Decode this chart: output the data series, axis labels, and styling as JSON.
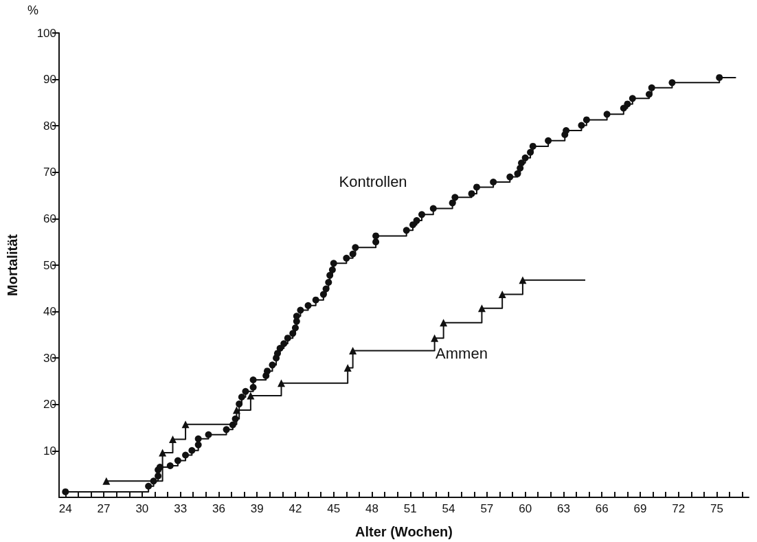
{
  "chart_data": {
    "type": "step",
    "xlabel": "Alter (Wochen)",
    "ylabel": "Mortalität",
    "annotations": [
      "%"
    ],
    "xlim": [
      23.5,
      77.5
    ],
    "ylim": [
      0,
      100
    ],
    "xticks": [
      24,
      {
        "value": 25,
        "label": null
      },
      {
        "value": 26,
        "label": null
      },
      27,
      {
        "value": 28,
        "label": null
      },
      {
        "value": 29,
        "label": null
      },
      30,
      {
        "value": 31,
        "label": null
      },
      {
        "value": 32,
        "label": null
      },
      33,
      {
        "value": 34,
        "label": null
      },
      {
        "value": 35,
        "label": null
      },
      36,
      {
        "value": 37,
        "label": null
      },
      {
        "value": 38,
        "label": null
      },
      39,
      {
        "value": 40,
        "label": null
      },
      {
        "value": 41,
        "label": null
      },
      42,
      {
        "value": 43,
        "label": null
      },
      {
        "value": 44,
        "label": null
      },
      45,
      {
        "value": 46,
        "label": null
      },
      {
        "value": 47,
        "label": null
      },
      48,
      {
        "value": 49,
        "label": null
      },
      {
        "value": 50,
        "label": null
      },
      51,
      {
        "value": 52,
        "label": null
      },
      {
        "value": 53,
        "label": null
      },
      54,
      {
        "value": 55,
        "label": null
      },
      {
        "value": 56,
        "label": null
      },
      57,
      {
        "value": 58,
        "label": null
      },
      {
        "value": 59,
        "label": null
      },
      60,
      {
        "value": 61,
        "label": null
      },
      {
        "value": 62,
        "label": null
      },
      63,
      {
        "value": 64,
        "label": null
      },
      {
        "value": 65,
        "label": null
      },
      66,
      {
        "value": 67,
        "label": null
      },
      {
        "value": 68,
        "label": null
      },
      69,
      {
        "value": 70,
        "label": null
      },
      {
        "value": 71,
        "label": null
      },
      72,
      {
        "value": 73,
        "label": null
      },
      {
        "value": 74,
        "label": null
      },
      75,
      {
        "value": 76,
        "label": null
      },
      {
        "value": 77,
        "label": null
      }
    ],
    "yticks": [
      10,
      20,
      30,
      40,
      50,
      60,
      70,
      80,
      90,
      100
    ],
    "grid": false,
    "legend": false,
    "line_style": "solid",
    "series": [
      {
        "name": "Kontrollen",
        "color": "#111111",
        "marker": "circle",
        "x": [
          24,
          30.5,
          30.9,
          31.25,
          31.25,
          31.4,
          32.2,
          32.8,
          33.4,
          33.9,
          34.4,
          34.4,
          35.2,
          36.6,
          37.1,
          37.3,
          37.6,
          37.8,
          38.1,
          38.7,
          38.7,
          39.7,
          39.8,
          40.2,
          40.5,
          40.6,
          40.8,
          41.1,
          41.4,
          41.8,
          42,
          42.1,
          42.1,
          42.4,
          43,
          43.6,
          44.2,
          44.4,
          44.6,
          44.7,
          44.9,
          45,
          46,
          46.5,
          46.7,
          48.3,
          48.3,
          50.7,
          51.2,
          51.5,
          51.9,
          52.8,
          54.3,
          54.5,
          55.8,
          56.2,
          57.5,
          58.8,
          59.4,
          59.6,
          59.7,
          60,
          60.4,
          60.6,
          61.8,
          63.1,
          63.2,
          64.4,
          64.8,
          66.4,
          67.7,
          68,
          68.4,
          69.7,
          69.9,
          71.5,
          75.2,
          76.5
        ],
        "values": [
          1.2,
          2.4,
          3.5,
          4.6,
          5.9,
          6.5,
          6.8,
          7.9,
          9.1,
          10.1,
          11.3,
          12.6,
          13.5,
          14.6,
          15.6,
          16.9,
          20.1,
          21.6,
          22.8,
          23.7,
          25.3,
          26.2,
          27.2,
          28.5,
          30,
          31,
          32.1,
          33.1,
          34.3,
          35.3,
          36.5,
          37.9,
          39,
          40.3,
          41.3,
          42.5,
          43.7,
          44.9,
          46.3,
          47.8,
          49,
          50.4,
          51.5,
          52.4,
          53.8,
          55,
          56.3,
          57.5,
          58.7,
          59.6,
          60.9,
          62.2,
          63.4,
          64.6,
          65.4,
          66.8,
          67.9,
          69,
          69.7,
          70.9,
          72,
          73.1,
          74.3,
          75.6,
          76.8,
          78.1,
          79,
          80.1,
          81.3,
          82.5,
          83.8,
          84.7,
          85.9,
          86.8,
          88.2,
          89.3,
          90.4,
          90.4
        ]
      },
      {
        "name": "Ammen",
        "color": "#111111",
        "marker": "triangle",
        "x": [
          27.2,
          31.6,
          32.4,
          33.4,
          37.4,
          38.5,
          40.9,
          46.1,
          46.5,
          52.9,
          53.6,
          56.6,
          58.2,
          59.8,
          64.7
        ],
        "values": [
          3.5,
          9.6,
          12.5,
          15.7,
          18.8,
          21.9,
          24.6,
          27.9,
          31.6,
          34.3,
          37.6,
          40.7,
          43.7,
          46.8,
          46.8
        ]
      }
    ]
  }
}
